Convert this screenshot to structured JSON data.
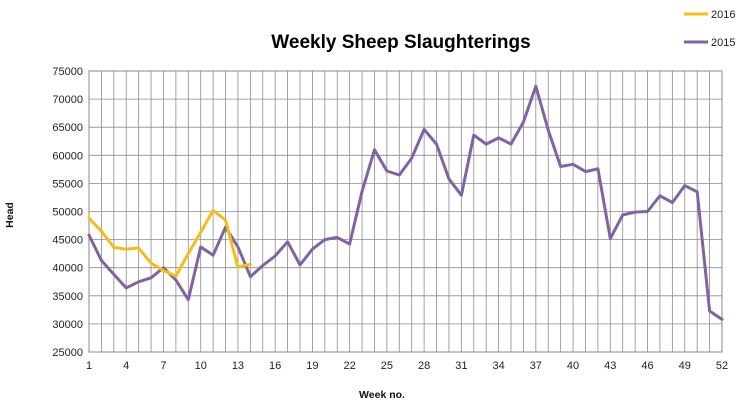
{
  "chart_data": {
    "type": "line",
    "title": "Weekly Sheep Slaughterings",
    "xlabel": "Week no.",
    "ylabel": "Head",
    "xlim": [
      1,
      52
    ],
    "ylim": [
      25000,
      75000
    ],
    "y_ticks": [
      25000,
      30000,
      35000,
      40000,
      45000,
      50000,
      55000,
      60000,
      65000,
      70000,
      75000
    ],
    "x_tick_labels": [
      1,
      4,
      7,
      10,
      13,
      16,
      19,
      22,
      25,
      28,
      31,
      34,
      37,
      40,
      43,
      46,
      49,
      52
    ],
    "grid": true,
    "legend_position": "top-right",
    "series": [
      {
        "name": "2016",
        "color": "#f5bd17",
        "x": [
          1,
          2,
          3,
          4,
          5,
          6,
          7,
          8,
          9,
          10,
          11,
          12,
          13,
          14
        ],
        "values": [
          48800,
          46500,
          43600,
          43300,
          43500,
          40800,
          39500,
          38500,
          42500,
          46300,
          50200,
          48500,
          40100,
          40600
        ]
      },
      {
        "name": "2015",
        "color": "#8064a2",
        "x": [
          1,
          2,
          3,
          4,
          5,
          6,
          7,
          8,
          9,
          10,
          11,
          12,
          13,
          14,
          15,
          16,
          17,
          18,
          19,
          20,
          21,
          22,
          23,
          24,
          25,
          26,
          27,
          28,
          29,
          30,
          31,
          32,
          33,
          34,
          35,
          36,
          37,
          38,
          39,
          40,
          41,
          42,
          43,
          44,
          45,
          46,
          47,
          48,
          49,
          50,
          51,
          52
        ],
        "values": [
          45800,
          41300,
          38800,
          36400,
          37500,
          38200,
          40000,
          37800,
          34300,
          43700,
          42200,
          47200,
          43700,
          38400,
          40400,
          42100,
          44600,
          40500,
          43300,
          45000,
          45400,
          44200,
          53600,
          61000,
          57200,
          56500,
          59500,
          64600,
          62000,
          55800,
          52900,
          63600,
          62000,
          63100,
          62000,
          65900,
          72300,
          64500,
          58000,
          58400,
          57100,
          57600,
          45200,
          49400,
          49900,
          50000,
          52800,
          51600,
          54600,
          53500,
          32300,
          30800
        ]
      }
    ]
  }
}
